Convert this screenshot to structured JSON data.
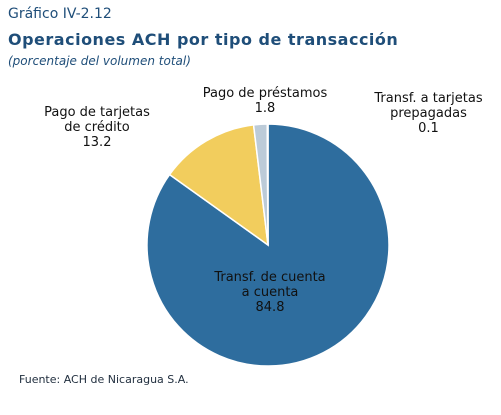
{
  "header": {
    "figure_number": "Gráfico IV-2.12",
    "title": "Operaciones ACH por tipo de transacción",
    "subtitle": "(porcentaje del volumen total)"
  },
  "source": "Fuente: ACH de Nicaragua S.A.",
  "chart_data": {
    "type": "pie",
    "title": "Operaciones ACH por tipo de transacción",
    "subtitle": "(porcentaje del volumen total)",
    "unit": "porcentaje del volumen total",
    "slices": [
      {
        "label_line1": "Transf. de cuenta",
        "label_line2": "a cuenta",
        "value": 84.8,
        "value_text": "84.8",
        "color": "#2e6d9e"
      },
      {
        "label_line1": "Pago de tarjetas",
        "label_line2": "de crédito",
        "value": 13.2,
        "value_text": "13.2",
        "color": "#f2cd5d"
      },
      {
        "label_line1": "Pago de préstamos",
        "label_line2": "",
        "value": 1.8,
        "value_text": "1.8",
        "color": "#bccbd8"
      },
      {
        "label_line1": "Transf. a tarjetas",
        "label_line2": "prepagadas",
        "value": 0.1,
        "value_text": "0.1",
        "color": "#5e8fb8"
      }
    ]
  }
}
